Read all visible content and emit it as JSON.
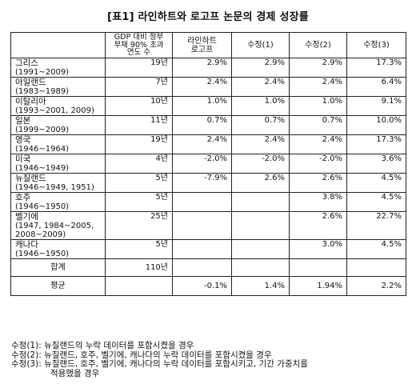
{
  "title": "[표1] 라인하트와 로고프 논문의 경제 성장률",
  "table": {
    "headers": {
      "country": "",
      "years_line1": "GDP 대비 정부",
      "years_line2": "부채 90% 초과",
      "years_line3": "연도 수",
      "rr_line1": "라인하트",
      "rr_line2": "로고프",
      "rev1": "수정(1)",
      "rev2": "수정(2)",
      "rev3": "수정(3)"
    },
    "rows": [
      {
        "name": "그리스",
        "period": "(1991~2009)",
        "years": "19년",
        "rr": "2.9%",
        "rev1": "2.9%",
        "rev2": "2.9%",
        "rev3": "17.3%"
      },
      {
        "name": "아일랜드",
        "period": "(1983~1989)",
        "years": "7년",
        "rr": "2.4%",
        "rev1": "2.4%",
        "rev2": "2.4%",
        "rev3": "6.4%"
      },
      {
        "name": "이탈리아",
        "period": "(1993~2001, 2009)",
        "years": "10년",
        "rr": "1.0%",
        "rev1": "1.0%",
        "rev2": "1.0%",
        "rev3": "9.1%"
      },
      {
        "name": "일본",
        "period": "(1999~2009)",
        "years": "11년",
        "rr": "0.7%",
        "rev1": "0.7%",
        "rev2": "0.7%",
        "rev3": "10.0%"
      },
      {
        "name": "영국",
        "period": "(1946~1964)",
        "years": "19년",
        "rr": "2.4%",
        "rev1": "2.4%",
        "rev2": "2.4%",
        "rev3": "17.3%"
      },
      {
        "name": "미국",
        "period": "(1946~1949)",
        "years": "4년",
        "rr": "-2.0%",
        "rev1": "-2.0%",
        "rev2": "-2.0%",
        "rev3": "3.6%"
      },
      {
        "name": "뉴질랜드",
        "period": "(1946~1949, 1951)",
        "years": "5년",
        "rr": "-7.9%",
        "rev1": "2.6%",
        "rev2": "2.6%",
        "rev3": "4.5%"
      },
      {
        "name": "호주",
        "period": "(1946~1950)",
        "years": "5년",
        "rr": "",
        "rev1": "",
        "rev2": "3.8%",
        "rev3": "4.5%"
      },
      {
        "name": "벨기에",
        "period": "(1947, 1984~2005,",
        "period2": "2008~2009)",
        "years": "25년",
        "rr": "",
        "rev1": "",
        "rev2": "2.6%",
        "rev3": "22.7%"
      },
      {
        "name": "캐나다",
        "period": "(1946~1950)",
        "years": "5년",
        "rr": "",
        "rev1": "",
        "rev2": "3.0%",
        "rev3": "4.5%"
      }
    ],
    "total": {
      "label": "합계",
      "years": "110년"
    },
    "average": {
      "label": "평균",
      "rr": "-0.1%",
      "rev1": "1.4%",
      "rev2": "1.94%",
      "rev3": "2.2%"
    }
  },
  "notes": {
    "n1": "수정(1): 뉴질랜드의 누락 데이터를 포함시켰을 경우",
    "n2": "수정(2): 뉴질랜드, 호주, 벨기에, 캐나다의 누락 데이터를 포함시켰을 경우",
    "n3": "수정(3): 뉴질랜드, 호주, 벨기에, 캐나다의 누락 데이터를 포함시키고, 기간 가중치를",
    "n3b": "적용했을 경우"
  }
}
